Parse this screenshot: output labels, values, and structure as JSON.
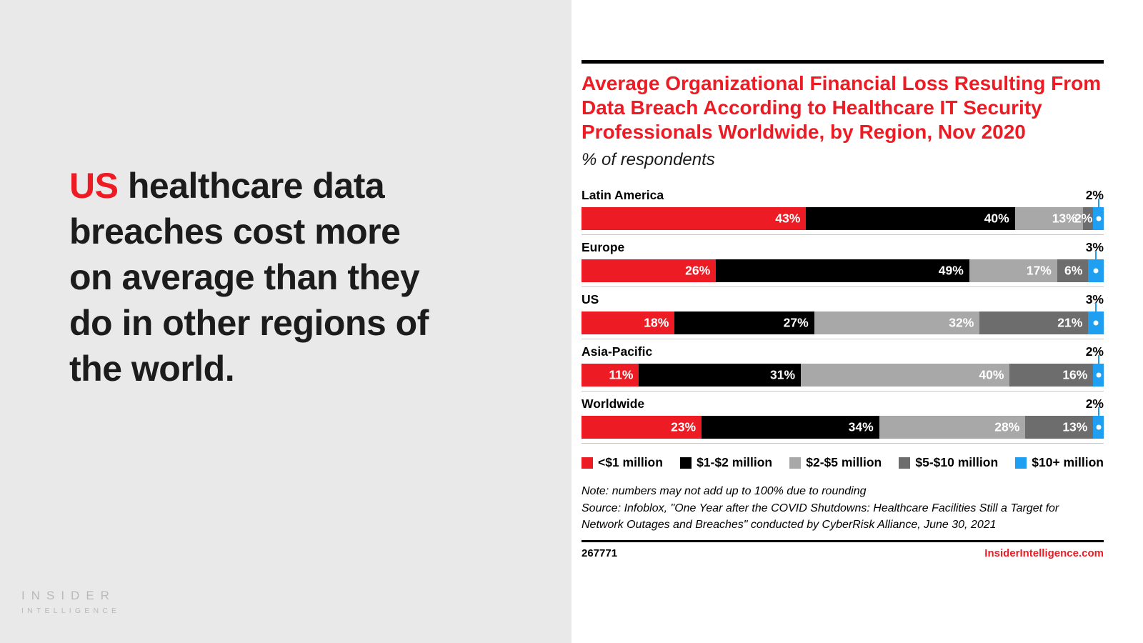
{
  "left": {
    "headline": {
      "highlight": "US",
      "line1_rest": " healthcare data",
      "lines": [
        "breaches cost more",
        "on average than they",
        "do in other regions of",
        "the world."
      ]
    },
    "logo": {
      "line1": "INSIDER",
      "line2": "INTELLIGENCE"
    }
  },
  "chart": {
    "title": "Average Organizational Financial Loss Resulting From Data Breach According to Healthcare IT Security Professionals Worldwide, by Region, Nov 2020",
    "subtitle": "% of respondents",
    "note": "Note: numbers may not add up to 100% due to rounding",
    "source": "Source: Infoblox, \"One Year after the COVID Shutdowns: Healthcare Facilities Still a Target for Network Outages and Breaches\" conducted by CyberRisk Alliance, June 30, 2021",
    "chart_id": "267771",
    "site": "InsiderIntelligence.com",
    "accent_red": "#ed1c24"
  },
  "chart_data": {
    "type": "bar",
    "orientation": "horizontal-stacked",
    "title": "Average Organizational Financial Loss Resulting From Data Breach According to Healthcare IT Security Professionals Worldwide, by Region, Nov 2020",
    "unit": "% of respondents",
    "categories": [
      "Latin America",
      "Europe",
      "US",
      "Asia-Pacific",
      "Worldwide"
    ],
    "series": [
      {
        "name": "<$1 million",
        "color": "#ed1c24",
        "values": [
          43,
          26,
          18,
          11,
          23
        ]
      },
      {
        "name": "$1-$2 million",
        "color": "#000000",
        "values": [
          40,
          49,
          27,
          31,
          34
        ]
      },
      {
        "name": "$2-$5 million",
        "color": "#a8a8a8",
        "values": [
          13,
          17,
          32,
          40,
          28
        ]
      },
      {
        "name": "$5-$10 million",
        "color": "#6d6d6d",
        "values": [
          2,
          6,
          21,
          16,
          13
        ]
      },
      {
        "name": "$10+ million",
        "color": "#1e9ff2",
        "values": [
          2,
          3,
          3,
          2,
          2
        ]
      }
    ],
    "callout_series": "$10+ million",
    "xlim": [
      0,
      100
    ],
    "legend_position": "bottom",
    "grid": false
  }
}
